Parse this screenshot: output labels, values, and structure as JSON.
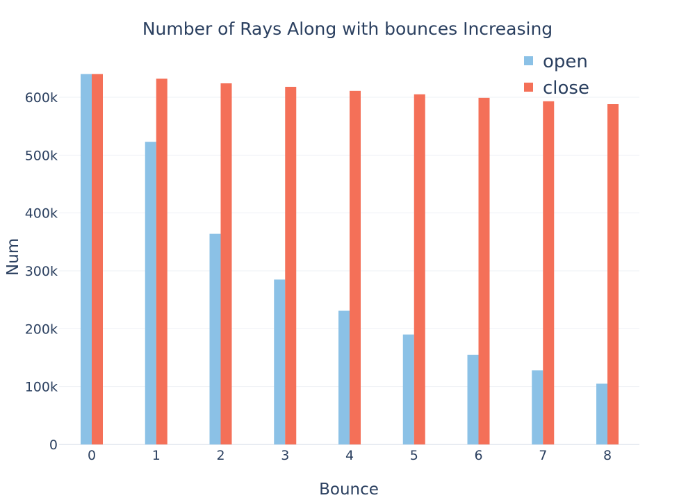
{
  "chart_data": {
    "type": "bar",
    "title": "Number of Rays Along with bounces Increasing",
    "xlabel": "Bounce",
    "ylabel": "Num",
    "categories": [
      "0",
      "1",
      "2",
      "3",
      "4",
      "5",
      "6",
      "7",
      "8"
    ],
    "series": [
      {
        "name": "open",
        "color": "#8bc1e6",
        "values": [
          640000,
          523000,
          364000,
          285000,
          231000,
          190000,
          155000,
          128000,
          105000
        ]
      },
      {
        "name": "close",
        "color": "#f47058",
        "values": [
          640000,
          632000,
          624000,
          618000,
          611000,
          605000,
          599000,
          593000,
          588000
        ]
      }
    ],
    "ylim": [
      0,
      660000
    ],
    "yticks": [
      0,
      100000,
      200000,
      300000,
      400000,
      500000,
      600000
    ],
    "ytick_labels": [
      "0",
      "100k",
      "200k",
      "300k",
      "400k",
      "500k",
      "600k"
    ],
    "grid": true,
    "legend_position": "top-right"
  }
}
